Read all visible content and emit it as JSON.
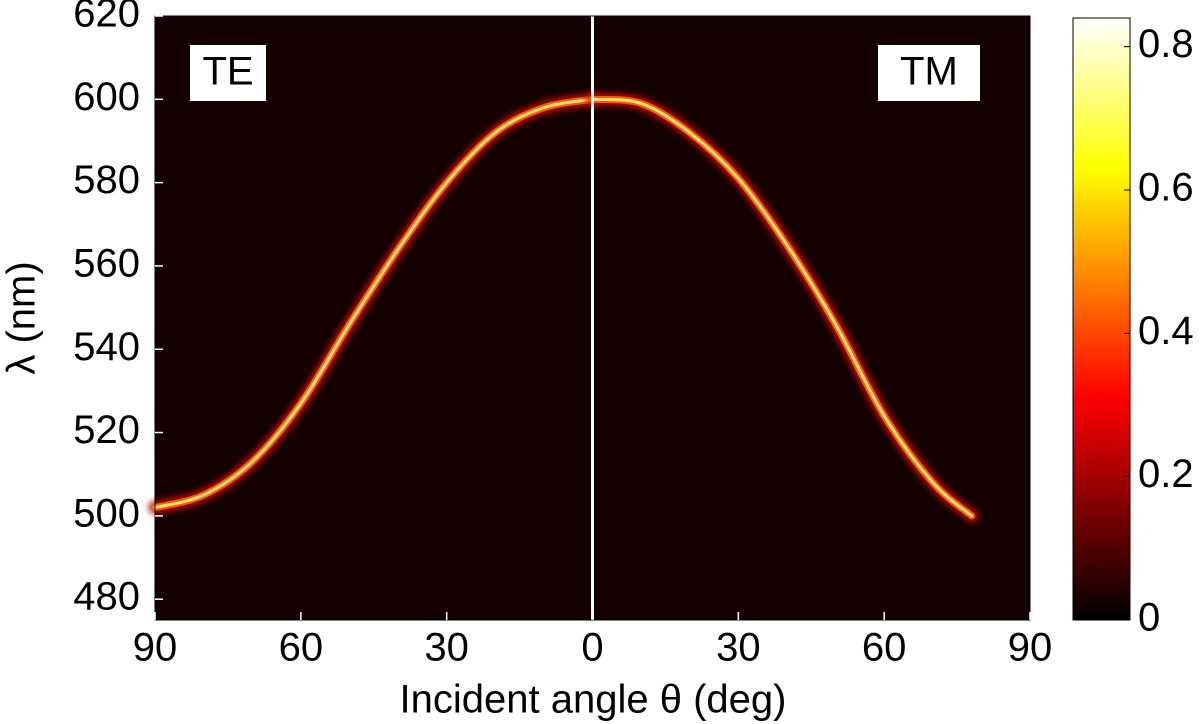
{
  "chart_data": {
    "type": "line",
    "xlabel": "Incident angle θ (deg)",
    "ylabel": "λ (nm)",
    "xlim": [
      -90,
      90
    ],
    "xticks": [
      {
        "value": -90,
        "label": "90"
      },
      {
        "value": -60,
        "label": "60"
      },
      {
        "value": -30,
        "label": "30"
      },
      0,
      30,
      {
        "value": 60,
        "label": "60"
      },
      {
        "value": 90,
        "label": "90"
      }
    ],
    "ylim": [
      475,
      620
    ],
    "yticks": [
      480,
      500,
      520,
      540,
      560,
      580,
      600,
      620
    ],
    "vline": 0,
    "series": [
      {
        "name": "TE",
        "x": [
          -90,
          -80,
          -70,
          -60,
          -50,
          -40,
          -30,
          -20,
          -10,
          0
        ],
        "values": [
          502,
          505,
          513,
          527,
          546,
          564,
          580,
          592,
          598,
          600
        ]
      },
      {
        "name": "TM",
        "x": [
          0,
          10,
          20,
          30,
          40,
          50,
          60,
          70,
          78
        ],
        "values": [
          600,
          599,
          592,
          581,
          565,
          546,
          524,
          508,
          500
        ]
      }
    ],
    "colorbar": {
      "colormap": "hot",
      "clim": [
        0,
        0.84
      ],
      "ticks": [
        0,
        0.2,
        0.4,
        0.6,
        0.8
      ]
    }
  }
}
